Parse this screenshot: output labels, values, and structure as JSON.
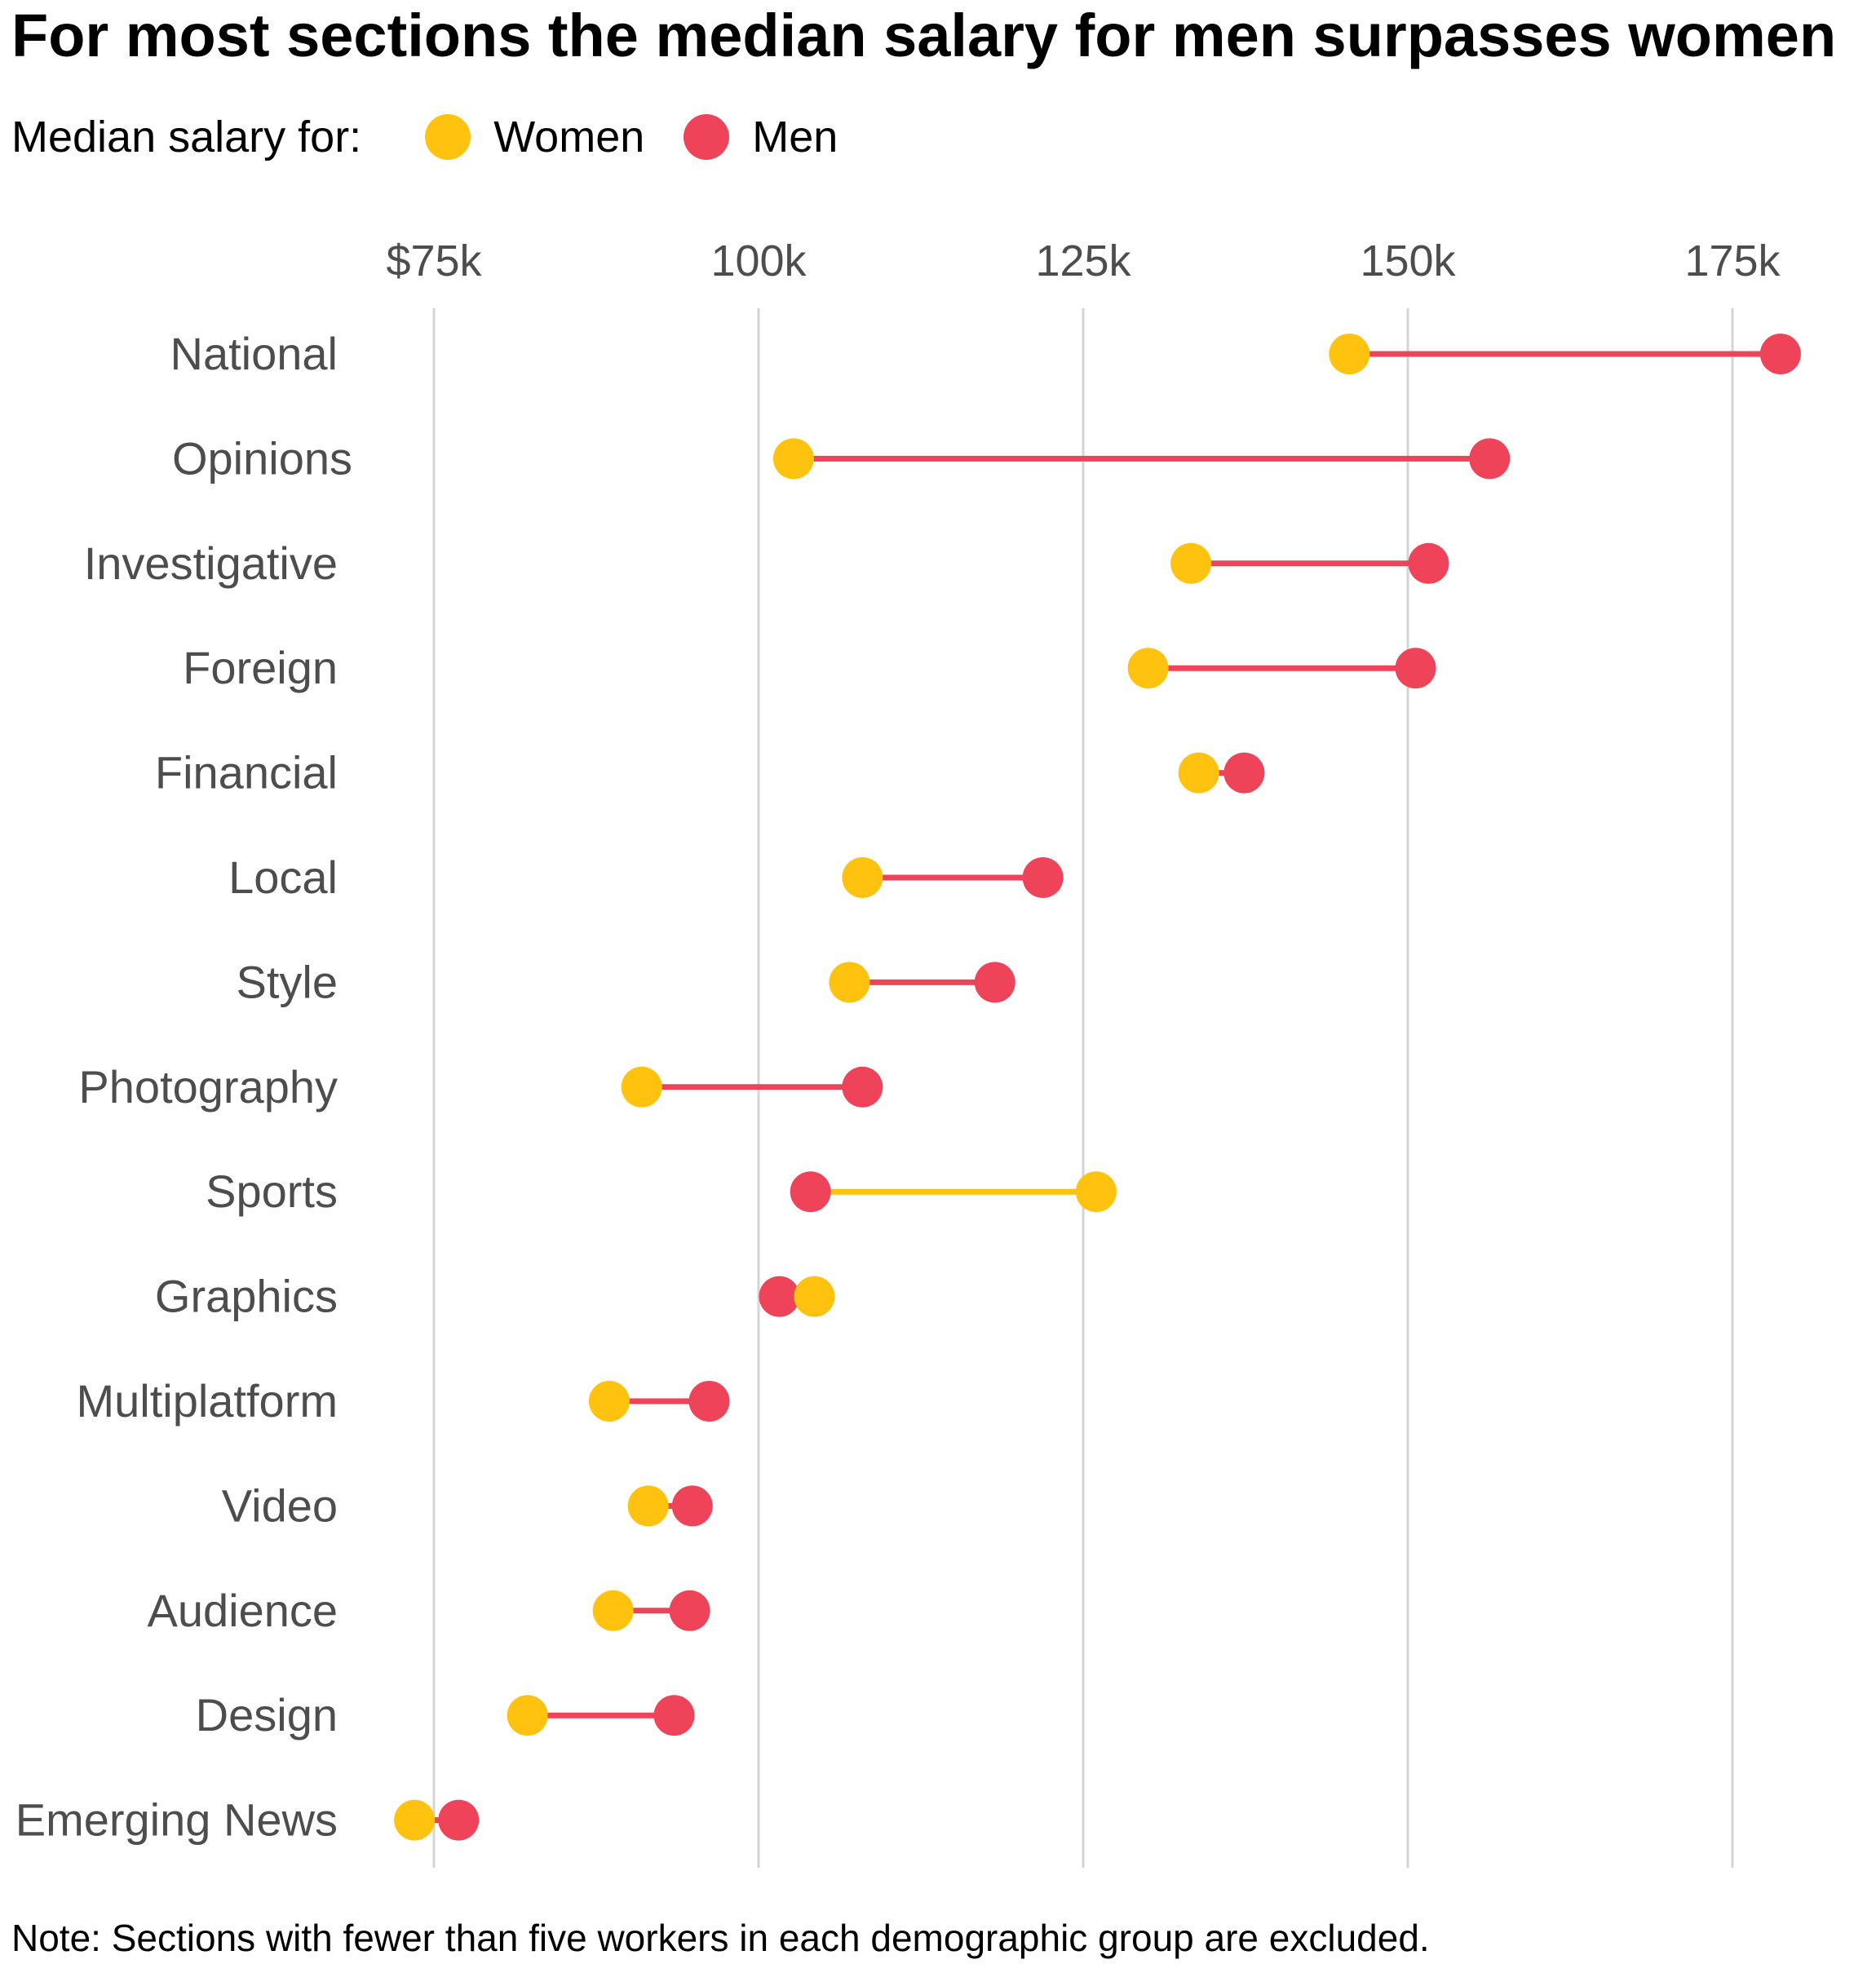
{
  "title": "For most sections the median salary for men surpasses women",
  "legend": {
    "label": "Median salary for:",
    "items": [
      {
        "name": "Women",
        "color": "#FFC20E"
      },
      {
        "name": "Men",
        "color": "#EE4358"
      }
    ]
  },
  "note": "Note: Sections with fewer than five workers in each demographic group are excluded.",
  "colors": {
    "women": "#FFC20E",
    "men": "#EE4358",
    "grid": "#d4d4d4",
    "label": "#4d4d4d"
  },
  "chart_data": {
    "type": "dumbbell",
    "title": "For most sections the median salary for men surpasses women",
    "xlabel": "",
    "ylabel": "",
    "xlim": [
      73000,
      180000
    ],
    "grid": true,
    "x_ticks": [
      {
        "value": 75000,
        "label": "$75k"
      },
      {
        "value": 100000,
        "label": "100k"
      },
      {
        "value": 125000,
        "label": "125k"
      },
      {
        "value": 150000,
        "label": "150k"
      },
      {
        "value": 175000,
        "label": "175k"
      }
    ],
    "categories": [
      "National",
      "Opinions",
      "Investigative",
      "Foreign",
      "Financial",
      "Local",
      "Style",
      "Photography",
      "Sports",
      "Graphics",
      "Multiplatform",
      "Video",
      "Audience",
      "Design",
      "Emerging News"
    ],
    "series": [
      {
        "name": "Women",
        "values": [
          145500,
          102700,
          133300,
          130000,
          133900,
          108000,
          107000,
          91000,
          126000,
          104300,
          88500,
          91500,
          88800,
          82200,
          73500
        ]
      },
      {
        "name": "Men",
        "values": [
          178700,
          156300,
          151600,
          150600,
          137400,
          121900,
          118200,
          108000,
          104000,
          101600,
          96200,
          94900,
          94700,
          93500,
          76900
        ]
      }
    ]
  }
}
